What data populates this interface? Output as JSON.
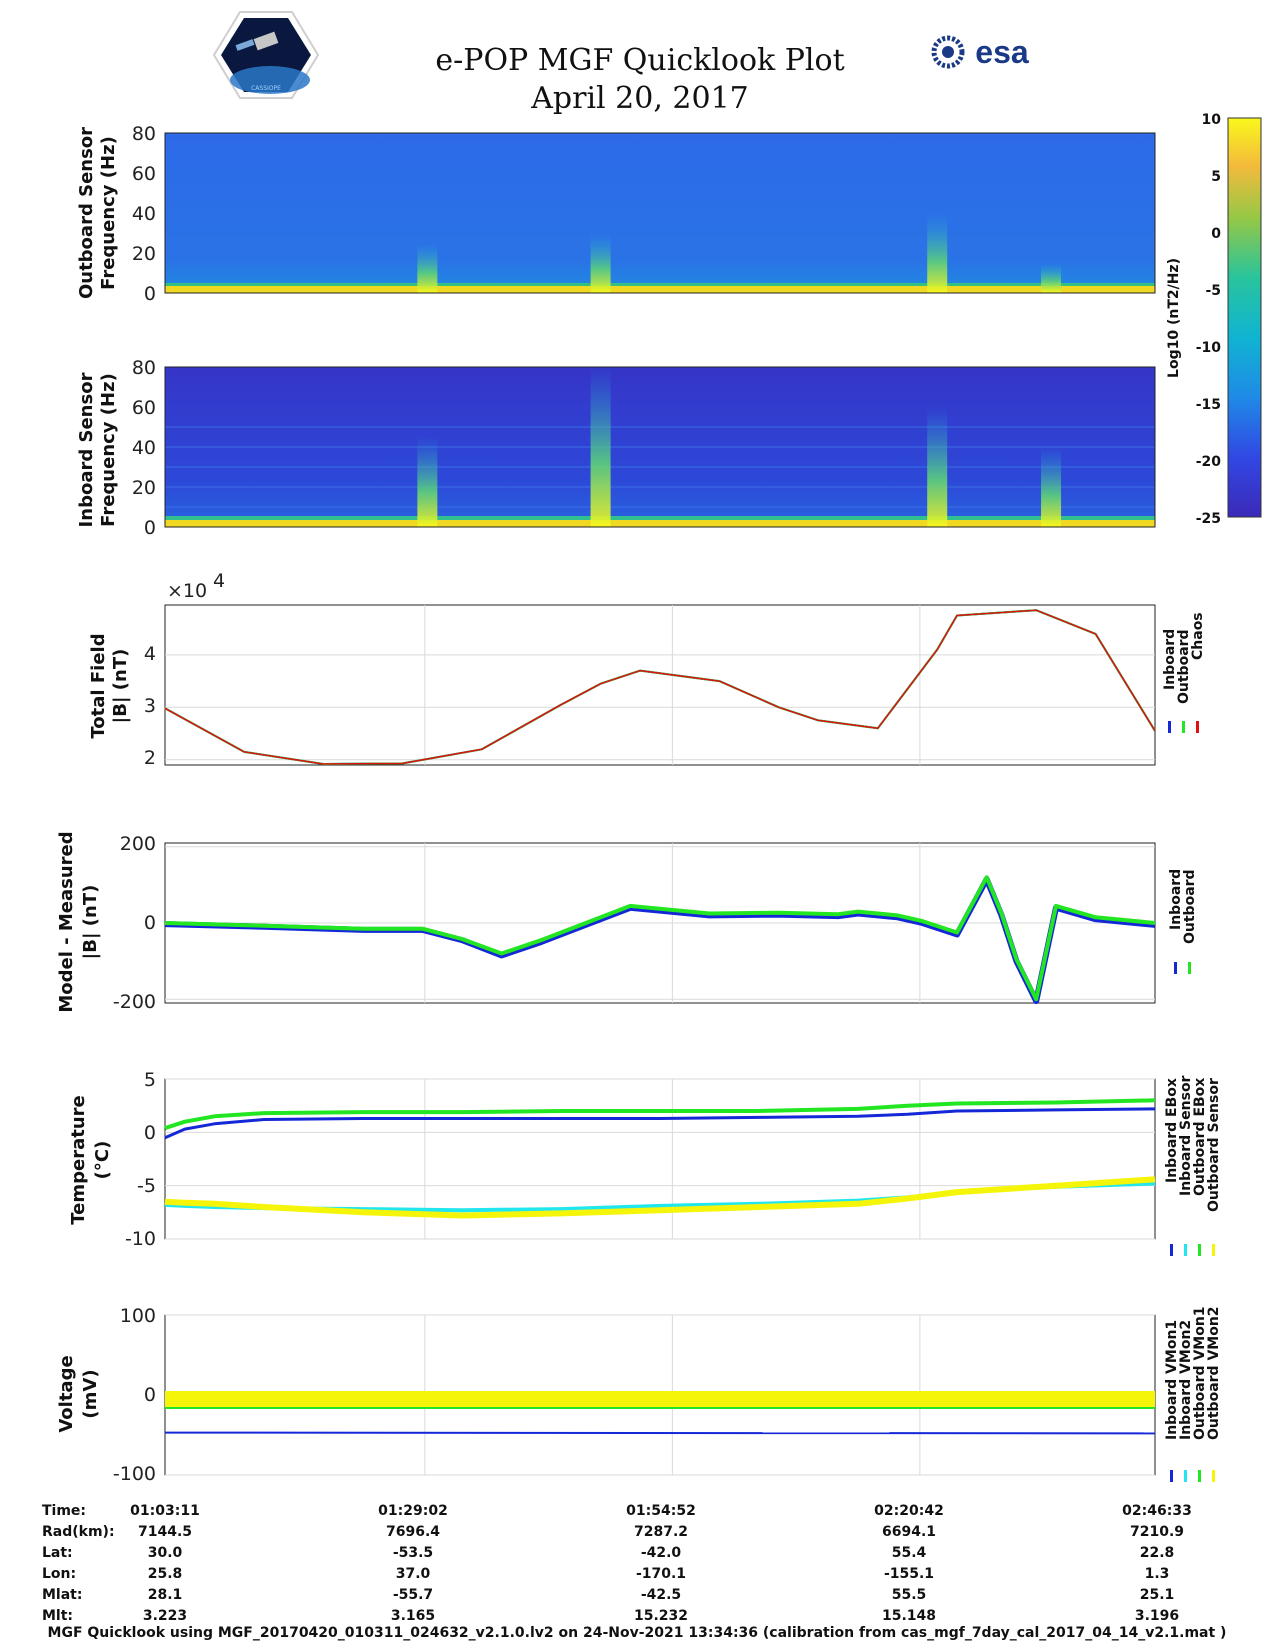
{
  "title": "e-POP MGF Quicklook Plot",
  "date": "April 20, 2017",
  "logo_left_text": "CASSIOPE",
  "logo_right_text": "esa",
  "colorbar": {
    "ticks": [
      "10",
      "5",
      "0",
      "-5",
      "-10",
      "-15",
      "-20",
      "-25"
    ],
    "label": "Log10 (nT2/Hz)",
    "range": [
      -25,
      10
    ]
  },
  "panels": {
    "outboard": {
      "ylabel1": "Outboard Sensor",
      "ylabel2": "Frequency (Hz)",
      "ticks": [
        "80",
        "60",
        "40",
        "20",
        "0"
      ]
    },
    "inboard": {
      "ylabel1": "Inboard Sensor",
      "ylabel2": "Frequency (Hz)",
      "ticks": [
        "80",
        "60",
        "40",
        "20",
        "0"
      ]
    },
    "total": {
      "ylabel1": "Total Field",
      "ylabel2": "|B| (nT)",
      "ticks": [
        "4",
        "3",
        "2"
      ],
      "exponent": "×10",
      "exponent_power": "4",
      "legend": [
        "Inboard",
        "Outboard",
        "Chaos"
      ]
    },
    "diff": {
      "ylabel1": "Model - Measured",
      "ylabel2": "|B| (nT)",
      "ticks": [
        "200",
        "0",
        "-200"
      ],
      "legend": [
        "Inboard",
        "Outboard"
      ]
    },
    "temp": {
      "ylabel1": "Temperature",
      "ylabel2": "(°C)",
      "ticks": [
        "5",
        "0",
        "-5",
        "-10"
      ],
      "legend": [
        "Inboard EBox",
        "Inboard Sensor",
        "Outboard EBox",
        "Outboard Sensor"
      ]
    },
    "volt": {
      "ylabel1": "Voltage",
      "ylabel2": "(mV)",
      "ticks": [
        "100",
        "0",
        "-100"
      ],
      "legend": [
        "Inboard VMon1",
        "Inboard VMon2",
        "Outboard VMon1",
        "Outboard VMon2"
      ]
    }
  },
  "ephemeris": {
    "labels": [
      "Time:",
      "Rad(km):",
      "Lat:",
      "Lon:",
      "Mlat:",
      "Mlt:"
    ],
    "columns": [
      [
        "01:03:11",
        "7144.5",
        "30.0",
        "25.8",
        "28.1",
        "3.223"
      ],
      [
        "01:29:02",
        "7696.4",
        "-53.5",
        "37.0",
        "-55.7",
        "3.165"
      ],
      [
        "01:54:52",
        "7287.2",
        "-42.0",
        "-170.1",
        "-42.5",
        "15.232"
      ],
      [
        "02:20:42",
        "6694.1",
        "55.4",
        "-155.1",
        "55.5",
        "15.148"
      ],
      [
        "02:46:33",
        "7210.9",
        "22.8",
        "1.3",
        "25.1",
        "3.196"
      ]
    ]
  },
  "footer": "MGF Quicklook using MGF_20170420_010311_024632_v2.1.0.lv2 on 24-Nov-2021 13:34:36 (calibration from cas_mgf_7day_cal_2017_04_14_v2.1.mat )",
  "chart_data": [
    {
      "type": "heatmap",
      "title": "Outboard Sensor Frequency (Hz)",
      "ylim": [
        0,
        80
      ],
      "zlim": [
        -25,
        10
      ],
      "background_log10": -20,
      "low_freq_band_hz": [
        0,
        3
      ],
      "bursts": [
        {
          "t": 0.265,
          "height_hz": 25
        },
        {
          "t": 0.44,
          "height_hz": 30
        },
        {
          "t": 0.78,
          "height_hz": 40
        },
        {
          "t": 0.895,
          "height_hz": 15
        }
      ]
    },
    {
      "type": "heatmap",
      "title": "Inboard Sensor Frequency (Hz)",
      "ylim": [
        0,
        80
      ],
      "zlim": [
        -25,
        10
      ],
      "background_log10": -23,
      "harmonic_lines_hz": [
        10,
        20,
        30,
        40,
        50
      ],
      "low_freq_band_hz": [
        0,
        3
      ],
      "bursts": [
        {
          "t": 0.265,
          "height_hz": 45
        },
        {
          "t": 0.44,
          "height_hz": 80
        },
        {
          "t": 0.78,
          "height_hz": 60
        },
        {
          "t": 0.895,
          "height_hz": 40
        }
      ]
    },
    {
      "type": "line",
      "title": "Total Field |B| (nT)",
      "ylim": [
        19000,
        49500
      ],
      "x": [
        0,
        0.08,
        0.16,
        0.24,
        0.32,
        0.4,
        0.44,
        0.48,
        0.56,
        0.62,
        0.66,
        0.72,
        0.78,
        0.8,
        0.88,
        0.94,
        1.0
      ],
      "series": [
        {
          "name": "Inboard",
          "values": [
            29800,
            21500,
            19200,
            19300,
            22000,
            30500,
            34500,
            37000,
            35000,
            30000,
            27500,
            26000,
            41000,
            47500,
            48500,
            44000,
            25500
          ]
        },
        {
          "name": "Outboard",
          "values": [
            29800,
            21500,
            19200,
            19300,
            22000,
            30500,
            34500,
            37000,
            35000,
            30000,
            27500,
            26000,
            41000,
            47500,
            48500,
            44000,
            25500
          ]
        },
        {
          "name": "Chaos",
          "values": [
            29800,
            21500,
            19200,
            19300,
            22000,
            30500,
            34500,
            37000,
            35000,
            30000,
            27500,
            26000,
            41000,
            47500,
            48500,
            44000,
            25500
          ]
        }
      ]
    },
    {
      "type": "line",
      "title": "Model - Measured |B| (nT)",
      "ylim": [
        -210,
        210
      ],
      "x": [
        0,
        0.1,
        0.2,
        0.26,
        0.3,
        0.34,
        0.38,
        0.43,
        0.47,
        0.55,
        0.62,
        0.68,
        0.7,
        0.72,
        0.74,
        0.765,
        0.8,
        0.83,
        0.845,
        0.86,
        0.88,
        0.9,
        0.94,
        1.0
      ],
      "series": [
        {
          "name": "Inboard",
          "values": [
            -3,
            -10,
            -18,
            -18,
            -45,
            -85,
            -50,
            0,
            40,
            20,
            22,
            18,
            25,
            20,
            15,
            0,
            -30,
            115,
            20,
            -100,
            -205,
            40,
            10,
            -5
          ]
        },
        {
          "name": "Outboard",
          "values": [
            0,
            -7,
            -15,
            -15,
            -42,
            -80,
            -45,
            5,
            45,
            25,
            27,
            23,
            30,
            25,
            20,
            5,
            -25,
            120,
            25,
            -95,
            -200,
            45,
            15,
            0
          ]
        }
      ]
    },
    {
      "type": "line",
      "title": "Temperature (°C)",
      "ylim": [
        -10,
        5
      ],
      "x": [
        0,
        0.02,
        0.05,
        0.1,
        0.2,
        0.3,
        0.4,
        0.5,
        0.6,
        0.7,
        0.75,
        0.8,
        0.9,
        1.0
      ],
      "series": [
        {
          "name": "Inboard EBox",
          "values": [
            -0.5,
            0.3,
            0.8,
            1.2,
            1.3,
            1.3,
            1.3,
            1.3,
            1.4,
            1.5,
            1.7,
            2.0,
            2.1,
            2.2
          ]
        },
        {
          "name": "Inboard Sensor",
          "values": [
            -6.8,
            -6.9,
            -7.0,
            -7.1,
            -7.2,
            -7.3,
            -7.2,
            -6.9,
            -6.7,
            -6.4,
            -6.1,
            -5.6,
            -5.1,
            -4.8
          ]
        },
        {
          "name": "Outboard EBox",
          "values": [
            0.4,
            1.0,
            1.5,
            1.8,
            1.9,
            1.9,
            2.0,
            2.0,
            2.0,
            2.2,
            2.5,
            2.7,
            2.8,
            3.0
          ]
        },
        {
          "name": "Outboard Sensor",
          "values": [
            -6.5,
            -6.6,
            -6.7,
            -7.0,
            -7.5,
            -7.8,
            -7.6,
            -7.3,
            -7.0,
            -6.7,
            -6.2,
            -5.6,
            -5.0,
            -4.4
          ]
        }
      ]
    },
    {
      "type": "line",
      "title": "Voltage (mV)",
      "ylim": [
        -100,
        100
      ],
      "x": [
        0,
        1.0
      ],
      "series": [
        {
          "name": "Inboard VMon1",
          "values": [
            -47,
            -48
          ]
        },
        {
          "name": "Inboard VMon2",
          "values": [
            -2,
            -2
          ]
        },
        {
          "name": "Outboard VMon1",
          "values": [
            -15,
            -15
          ]
        },
        {
          "name": "Outboard VMon2",
          "values": [
            -5,
            -5
          ]
        }
      ]
    }
  ],
  "colors": {
    "inboard": "#1428d8",
    "outboard": "#22e622",
    "chaos": "#e01010",
    "cyan": "#22e6ee",
    "yellow": "#f5f50a",
    "grid": "#d9d9d9"
  }
}
